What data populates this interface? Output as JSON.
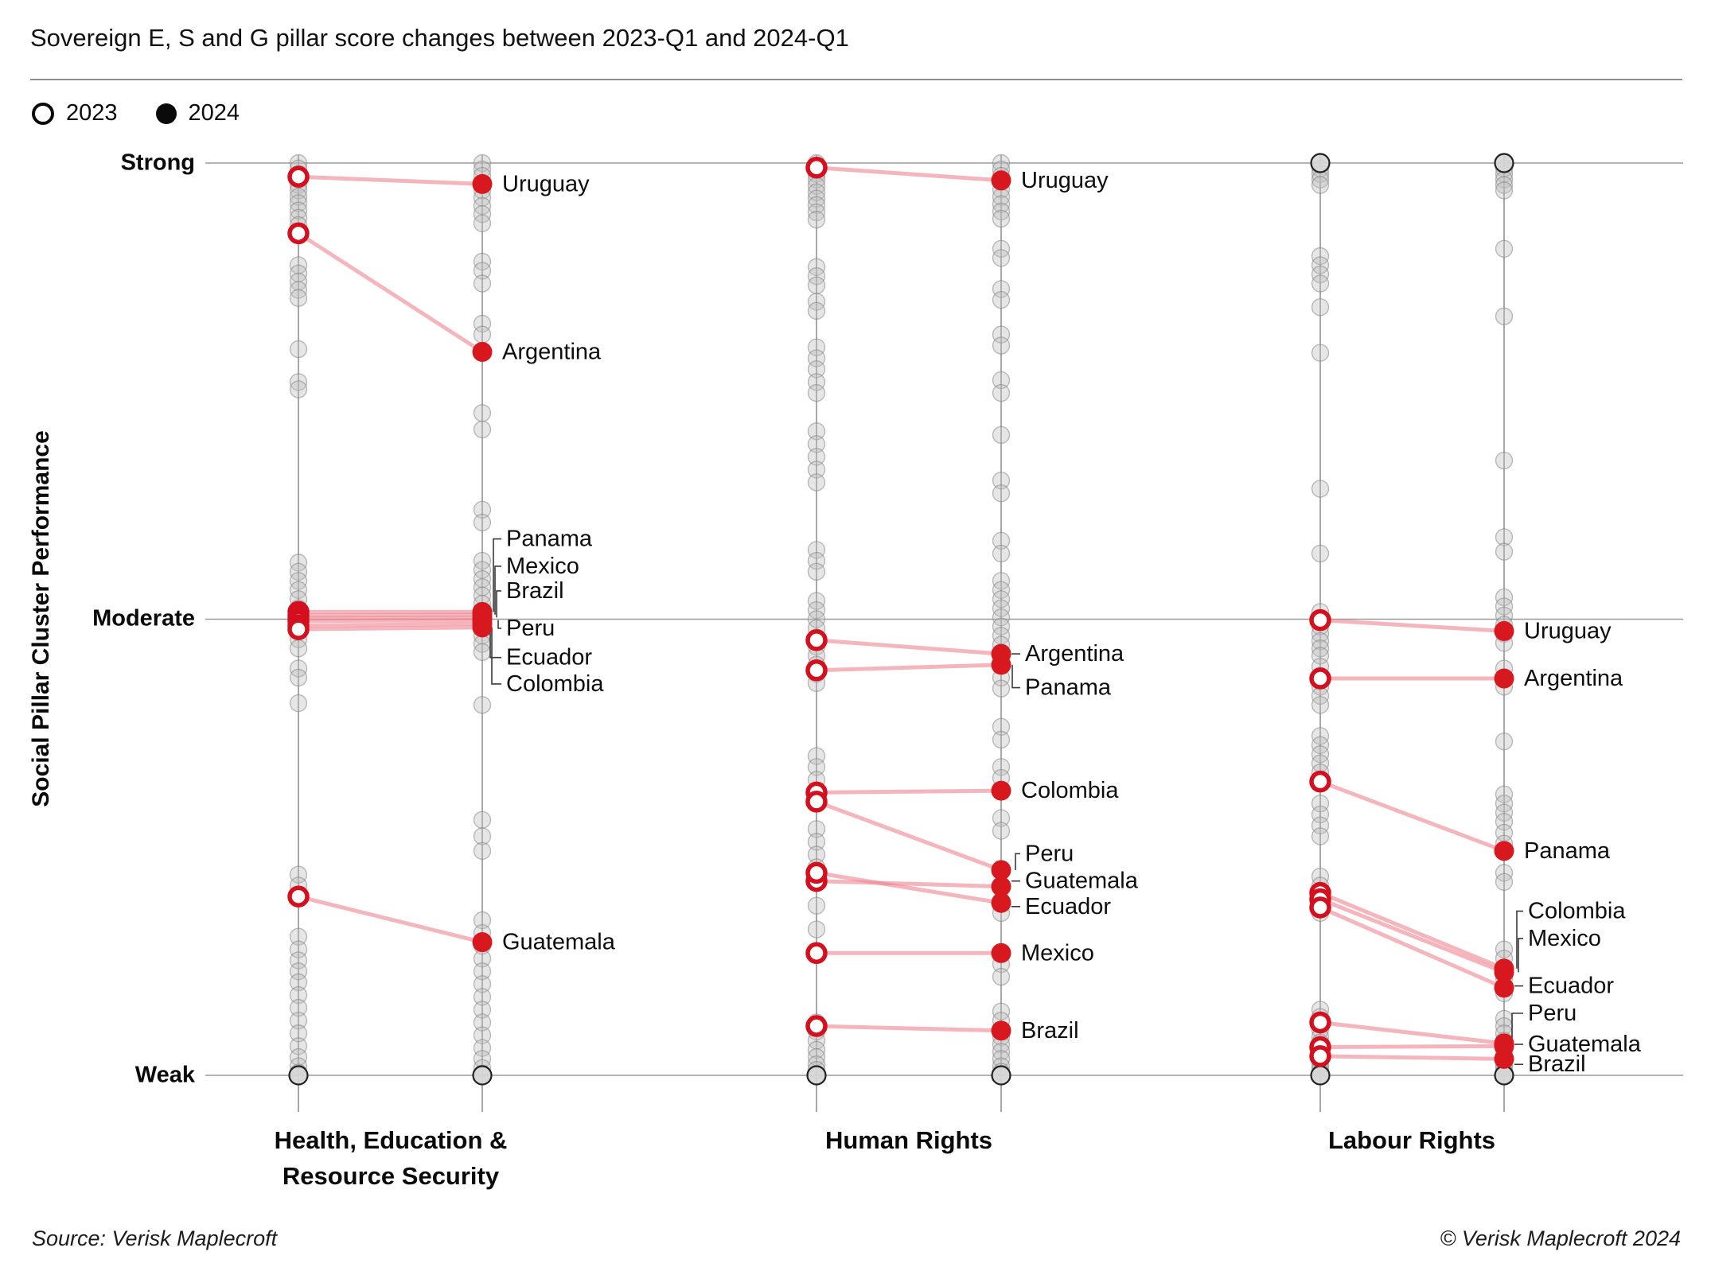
{
  "header": {
    "title": "Sovereign E, S and G pillar score changes between 2023-Q1 and 2024-Q1"
  },
  "legend": {
    "open_label": "2023",
    "filled_label": "2024"
  },
  "y_axis": {
    "label": "Social Pillar Cluster Performance",
    "ticks": [
      "Strong",
      "Moderate",
      "Weak"
    ]
  },
  "footer": {
    "source": "Source: Verisk Maplecroft",
    "copyright": "© Verisk Maplecroft 2024"
  },
  "colors": {
    "red": "#d7191f",
    "red_ring": "#d40f1e",
    "pink_line": "#ef8490",
    "gray_dot": "#bdbdbd",
    "gray_stroke": "#7d7d7d",
    "grid": "#9b9b9b",
    "axis": "#7a7a7a",
    "leader": "#3a3a3a",
    "label_text": "#0d0d0d"
  },
  "chart_data": {
    "type": "slope",
    "description": "Dot-strip slope chart. Each panel has a 2023 axis (open circles) and a 2024 axis (filled circles). Scores are on a 0-100 performance scale estimated from the axis: Strong=100, Moderate=50, Weak=0. Gray dots are all other sovereigns; red dots are highlighted Latin American countries.",
    "score_scale": {
      "min": 0,
      "max": 100,
      "tick_values": {
        "Strong": 100,
        "Moderate": 50,
        "Weak": 0
      }
    },
    "legend_position": "top-left",
    "panels": [
      {
        "title_lines": [
          "Health, Education &",
          "Resource Security"
        ],
        "dark_ring_scores": [
          0
        ],
        "countries": [
          {
            "name": "Uruguay",
            "s2023": 98.5,
            "s2024": 97.7,
            "label_score": 97.7,
            "leader": false
          },
          {
            "name": "Argentina",
            "s2023": 92.3,
            "s2024": 79.3,
            "label_score": 79.3,
            "leader": false
          },
          {
            "name": "Panama",
            "s2023": 50.8,
            "s2024": 50.8,
            "label_score": 58.8,
            "leader": true
          },
          {
            "name": "Mexico",
            "s2023": 50.4,
            "s2024": 50.5,
            "label_score": 55.8,
            "leader": true
          },
          {
            "name": "Brazil",
            "s2023": 50.1,
            "s2024": 50.2,
            "label_score": 53.1,
            "leader": true
          },
          {
            "name": "Peru",
            "s2023": 49.8,
            "s2024": 49.9,
            "label_score": 49.0,
            "leader": true
          },
          {
            "name": "Ecuador",
            "s2023": 49.3,
            "s2024": 49.5,
            "label_score": 45.8,
            "leader": true
          },
          {
            "name": "Colombia",
            "s2023": 48.9,
            "s2024": 49.1,
            "label_score": 42.9,
            "leader": true
          },
          {
            "name": "Guatemala",
            "s2023": 19.6,
            "s2024": 14.6,
            "label_score": 14.6,
            "leader": false
          }
        ],
        "background_2023": [
          100,
          99.4,
          98.8,
          98.2,
          97.6,
          97,
          96.3,
          95.6,
          94.8,
          94,
          93.2,
          88.8,
          87.9,
          87,
          86.1,
          85.2,
          79.6,
          76,
          75.2,
          56.2,
          55.2,
          54.2,
          53.2,
          52.2,
          51.2,
          50.4,
          49.6,
          48.8,
          47.8,
          46.8,
          44.6,
          43.6,
          40.8,
          22,
          20.8,
          19.4,
          15.2,
          13.8,
          12.6,
          11.4,
          10.2,
          8.8,
          7.4,
          6,
          4.6,
          3.2,
          2,
          1,
          0.3,
          0
        ],
        "background_2024": [
          100,
          99.3,
          98.6,
          97.8,
          97,
          96.2,
          95.3,
          94.4,
          93.4,
          89.2,
          88.2,
          86.8,
          82.4,
          81.2,
          72.6,
          70.8,
          62,
          60.6,
          56.4,
          55.4,
          54.4,
          53.5,
          52.6,
          51.7,
          50.8,
          50,
          49.1,
          48.2,
          47.3,
          46.4,
          40.6,
          28,
          26.2,
          24.6,
          17,
          15.6,
          14.2,
          12.8,
          11.4,
          10,
          8.6,
          7.2,
          5.8,
          4.4,
          3,
          1.8,
          0.8,
          0.2,
          0
        ]
      },
      {
        "title_lines": [
          "Human Rights"
        ],
        "dark_ring_scores": [
          0
        ],
        "countries": [
          {
            "name": "Uruguay",
            "s2023": 99.5,
            "s2024": 98.1,
            "label_score": 98.1,
            "leader": false
          },
          {
            "name": "Argentina",
            "s2023": 47.7,
            "s2024": 46.2,
            "label_score": 46.2,
            "leader": true
          },
          {
            "name": "Panama",
            "s2023": 44.4,
            "s2024": 45.0,
            "label_score": 42.5,
            "leader": true
          },
          {
            "name": "Colombia",
            "s2023": 31.0,
            "s2024": 31.2,
            "label_score": 31.2,
            "leader": false
          },
          {
            "name": "Peru",
            "s2023": 30.0,
            "s2024": 22.5,
            "label_score": 24.3,
            "leader": true
          },
          {
            "name": "Guatemala",
            "s2023": 21.3,
            "s2024": 20.7,
            "label_score": 21.3,
            "leader": true
          },
          {
            "name": "Ecuador",
            "s2023": 22.2,
            "s2024": 18.9,
            "label_score": 18.5,
            "leader": true
          },
          {
            "name": "Mexico",
            "s2023": 13.4,
            "s2024": 13.4,
            "label_score": 13.4,
            "leader": false
          },
          {
            "name": "Brazil",
            "s2023": 5.4,
            "s2024": 4.9,
            "label_score": 4.9,
            "leader": false
          }
        ],
        "background_2023": [
          100,
          99.4,
          98.8,
          98.2,
          97.5,
          96.8,
          96.1,
          95.4,
          94.6,
          93.8,
          88.6,
          87.6,
          86.6,
          84.8,
          83.8,
          79.8,
          78.6,
          77.4,
          76,
          74.8,
          70.6,
          69.2,
          67.8,
          66.4,
          65,
          57.6,
          56.4,
          55.2,
          52,
          51,
          50,
          49,
          48,
          47,
          46,
          45,
          44,
          43,
          35,
          33.8,
          32.4,
          27,
          25.6,
          24.2,
          22.8,
          21.4,
          18.6,
          16,
          5.8,
          4.8,
          3.8,
          2.8,
          2,
          1.2,
          0.6,
          0.1
        ],
        "background_2024": [
          100,
          99.3,
          98.6,
          97.9,
          97.1,
          96.3,
          95.5,
          94.7,
          93.9,
          90.6,
          89.6,
          86.2,
          85,
          81.2,
          80,
          76.2,
          74.8,
          70.2,
          65.2,
          63.8,
          58.6,
          57.2,
          54.2,
          53.2,
          52.2,
          51.2,
          50.2,
          49.2,
          48.2,
          47.2,
          46.2,
          45.2,
          43.6,
          42.4,
          38.2,
          36.8,
          33.8,
          32.6,
          28.2,
          26.8,
          19.2,
          17.8,
          12.2,
          10.8,
          7,
          6,
          5,
          4.2,
          3.4,
          2.6,
          1.8,
          1,
          0.4,
          0
        ]
      },
      {
        "title_lines": [
          "Labour Rights"
        ],
        "dark_ring_scores": [
          0,
          100
        ],
        "countries": [
          {
            "name": "Uruguay",
            "s2023": 49.9,
            "s2024": 48.7,
            "label_score": 48.7,
            "leader": false
          },
          {
            "name": "Argentina",
            "s2023": 43.5,
            "s2024": 43.5,
            "label_score": 43.5,
            "leader": false
          },
          {
            "name": "Panama",
            "s2023": 32.2,
            "s2024": 24.6,
            "label_score": 24.6,
            "leader": false
          },
          {
            "name": "Colombia",
            "s2023": 20.0,
            "s2024": 11.7,
            "label_score": 18.0,
            "leader": true
          },
          {
            "name": "Mexico",
            "s2023": 19.3,
            "s2024": 11.3,
            "label_score": 15.0,
            "leader": true
          },
          {
            "name": "Ecuador",
            "s2023": 18.4,
            "s2024": 9.6,
            "label_score": 9.8,
            "leader": true
          },
          {
            "name": "Peru",
            "s2023": 5.8,
            "s2024": 3.5,
            "label_score": 6.8,
            "leader": true
          },
          {
            "name": "Guatemala",
            "s2023": 3.1,
            "s2024": 3.2,
            "label_score": 3.4,
            "leader": true
          },
          {
            "name": "Brazil",
            "s2023": 2.1,
            "s2024": 1.8,
            "label_score": 1.2,
            "leader": true
          }
        ],
        "background_2023": [
          100,
          99.4,
          98.8,
          98.2,
          97.6,
          89.8,
          88.8,
          87.8,
          86.8,
          84.2,
          79.2,
          64.3,
          57.2,
          50.8,
          50,
          49.2,
          48.4,
          47.6,
          46.8,
          46,
          44.8,
          43.8,
          42.6,
          41.6,
          40.6,
          37.2,
          36.2,
          35.2,
          34.2,
          33.2,
          29.8,
          28.6,
          27.4,
          26.2,
          21.8,
          20.8,
          19.8,
          18.8,
          17.8,
          7.2,
          6.4,
          5,
          4.2,
          3.6,
          2.8,
          2.2,
          1.6,
          1.1,
          0.7,
          0.3,
          0
        ],
        "background_2024": [
          100,
          99.4,
          98.8,
          98.2,
          97.6,
          97,
          90.6,
          83.2,
          67.4,
          59,
          57.4,
          52.4,
          51.4,
          50.4,
          49.4,
          48.4,
          47.4,
          44.6,
          43.6,
          42.6,
          36.6,
          30.8,
          29.8,
          28.8,
          27.8,
          26.6,
          25.4,
          22.2,
          21.2,
          13.8,
          12.8,
          11.8,
          10.6,
          9,
          6.2,
          5.4,
          4.6,
          3.8,
          3,
          2.4,
          1.8,
          1.2,
          0.8,
          0.4,
          0.1,
          0
        ]
      }
    ]
  }
}
